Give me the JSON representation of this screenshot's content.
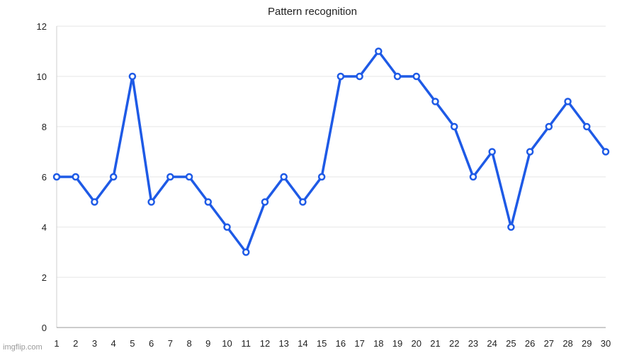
{
  "chart_data": {
    "type": "line",
    "title": "Pattern recognition",
    "x": [
      1,
      2,
      3,
      4,
      5,
      6,
      7,
      8,
      9,
      10,
      11,
      12,
      13,
      14,
      15,
      16,
      17,
      18,
      19,
      20,
      21,
      22,
      23,
      24,
      25,
      26,
      27,
      28,
      29,
      30
    ],
    "series": [
      {
        "values": [
          6,
          6,
          5,
          6,
          10,
          5,
          6,
          6,
          5,
          4,
          3,
          5,
          6,
          5,
          6,
          10,
          10,
          11,
          10,
          10,
          9,
          8,
          6,
          7,
          4,
          7,
          8,
          9,
          8,
          7
        ]
      }
    ],
    "ylim": [
      0,
      12
    ],
    "yticks": [
      0,
      2,
      4,
      6,
      8,
      10,
      12
    ],
    "grid": true,
    "line_color": "#1e5ae6"
  },
  "watermark": "imgflip.com"
}
